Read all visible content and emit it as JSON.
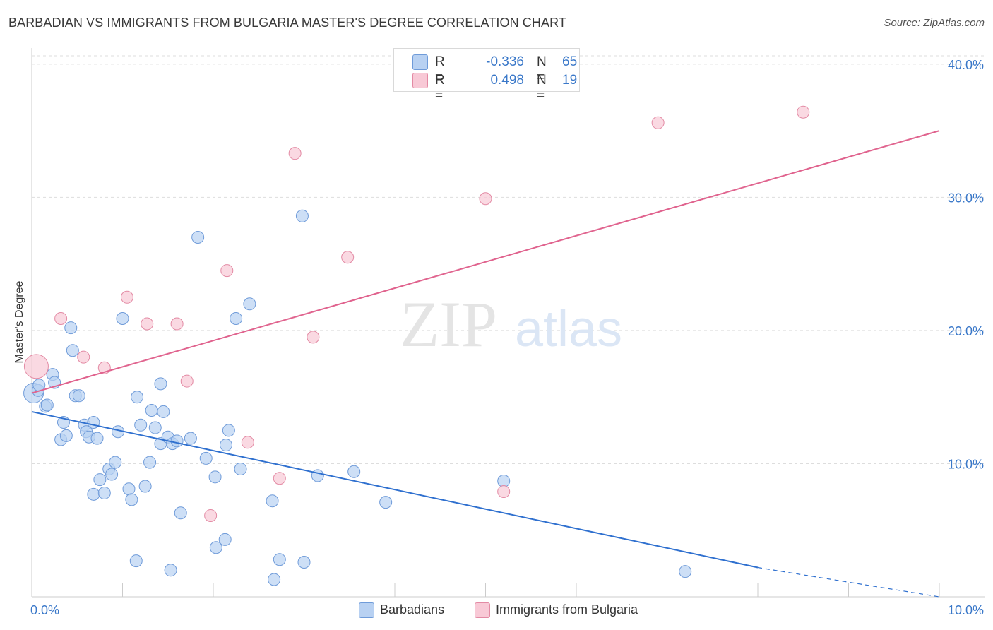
{
  "header": {
    "title": "BARBADIAN VS IMMIGRANTS FROM BULGARIA MASTER'S DEGREE CORRELATION CHART",
    "source": "Source: ZipAtlas.com"
  },
  "watermark": {
    "zip": "ZIP",
    "atlas": "atlas"
  },
  "legend_top": [
    {
      "r_label": "R =",
      "r_value": "-0.336",
      "n_label": "N =",
      "n_value": "65"
    },
    {
      "r_label": "R =",
      "r_value": "0.498",
      "n_label": "N =",
      "n_value": "19"
    }
  ],
  "legend_bottom": [
    {
      "label": "Barbadians"
    },
    {
      "label": "Immigrants from Bulgaria"
    }
  ],
  "colors": {
    "blue_fill": "#b8d1f2",
    "blue_stroke": "#6f9bd9",
    "blue_line": "#2f70cf",
    "pink_fill": "#f8c9d6",
    "pink_stroke": "#e38aa4",
    "pink_line": "#e0638e",
    "tick_text": "#3a78c9",
    "grid": "#dddddd"
  },
  "chart_data": {
    "type": "scatter",
    "title": "BARBADIAN VS IMMIGRANTS FROM BULGARIA MASTER'S DEGREE CORRELATION CHART",
    "xlabel": "",
    "ylabel": "Master's Degree",
    "xlim": [
      0,
      10
    ],
    "ylim": [
      0,
      41
    ],
    "x_ticks": [
      0,
      10
    ],
    "x_tick_labels": [
      "0.0%",
      "10.0%"
    ],
    "y_ticks": [
      10,
      20,
      30,
      40
    ],
    "y_tick_labels": [
      "10.0%",
      "20.0%",
      "30.0%",
      "40.0%"
    ],
    "grid": true,
    "legend_position": "top-center",
    "series": [
      {
        "name": "Barbadians",
        "color": "#b8d1f2",
        "r": -0.336,
        "n": 65,
        "trend": {
          "x": [
            0,
            8.0
          ],
          "y": [
            13.9,
            2.2
          ],
          "dashed_to": [
            10.0,
            -1.0
          ]
        },
        "points": [
          [
            0.02,
            15.3
          ],
          [
            0.07,
            15.5
          ],
          [
            0.08,
            15.9
          ],
          [
            0.15,
            14.3
          ],
          [
            0.17,
            14.4
          ],
          [
            0.23,
            16.7
          ],
          [
            0.25,
            16.1
          ],
          [
            0.35,
            13.1
          ],
          [
            0.32,
            11.8
          ],
          [
            0.38,
            12.1
          ],
          [
            0.43,
            20.2
          ],
          [
            0.45,
            18.5
          ],
          [
            0.48,
            15.1
          ],
          [
            0.52,
            15.1
          ],
          [
            0.58,
            12.9
          ],
          [
            0.6,
            12.4
          ],
          [
            0.63,
            12.0
          ],
          [
            0.68,
            13.1
          ],
          [
            0.72,
            11.9
          ],
          [
            0.68,
            7.7
          ],
          [
            0.75,
            8.8
          ],
          [
            0.8,
            7.8
          ],
          [
            0.85,
            9.6
          ],
          [
            0.88,
            9.2
          ],
          [
            0.92,
            10.1
          ],
          [
            0.95,
            12.4
          ],
          [
            1.0,
            20.9
          ],
          [
            1.07,
            8.1
          ],
          [
            1.1,
            7.3
          ],
          [
            1.16,
            15.0
          ],
          [
            1.2,
            12.9
          ],
          [
            1.25,
            8.3
          ],
          [
            1.3,
            10.1
          ],
          [
            1.32,
            14.0
          ],
          [
            1.36,
            12.7
          ],
          [
            1.42,
            11.5
          ],
          [
            1.45,
            13.9
          ],
          [
            1.5,
            12.0
          ],
          [
            1.55,
            11.5
          ],
          [
            1.6,
            11.7
          ],
          [
            1.42,
            16.0
          ],
          [
            1.64,
            6.3
          ],
          [
            1.83,
            27.0
          ],
          [
            1.92,
            10.4
          ],
          [
            2.02,
            9.0
          ],
          [
            2.14,
            11.4
          ],
          [
            2.17,
            12.5
          ],
          [
            2.25,
            20.9
          ],
          [
            2.3,
            9.6
          ],
          [
            2.4,
            22.0
          ],
          [
            2.03,
            3.7
          ],
          [
            2.13,
            4.3
          ],
          [
            1.15,
            2.7
          ],
          [
            1.53,
            2.0
          ],
          [
            2.65,
            7.2
          ],
          [
            2.73,
            2.8
          ],
          [
            2.67,
            1.3
          ],
          [
            2.98,
            28.6
          ],
          [
            3.0,
            2.6
          ],
          [
            3.15,
            9.1
          ],
          [
            3.55,
            9.4
          ],
          [
            3.9,
            7.1
          ],
          [
            5.2,
            8.7
          ],
          [
            7.2,
            1.9
          ],
          [
            1.75,
            11.9
          ]
        ]
      },
      {
        "name": "Immigrants from Bulgaria",
        "color": "#f8c9d6",
        "r": 0.498,
        "n": 19,
        "trend": {
          "x": [
            0,
            10.0
          ],
          "y": [
            15.3,
            35.0
          ]
        },
        "points": [
          [
            0.05,
            17.3
          ],
          [
            0.32,
            20.9
          ],
          [
            0.57,
            18.0
          ],
          [
            0.8,
            17.2
          ],
          [
            1.05,
            22.5
          ],
          [
            1.27,
            20.5
          ],
          [
            1.6,
            20.5
          ],
          [
            1.71,
            16.2
          ],
          [
            2.15,
            24.5
          ],
          [
            2.38,
            11.6
          ],
          [
            2.73,
            8.9
          ],
          [
            2.9,
            33.3
          ],
          [
            3.1,
            19.5
          ],
          [
            3.48,
            25.5
          ],
          [
            1.97,
            6.1
          ],
          [
            5.2,
            7.9
          ],
          [
            5.0,
            29.9
          ],
          [
            6.9,
            35.6
          ],
          [
            8.5,
            36.4
          ]
        ]
      }
    ]
  }
}
